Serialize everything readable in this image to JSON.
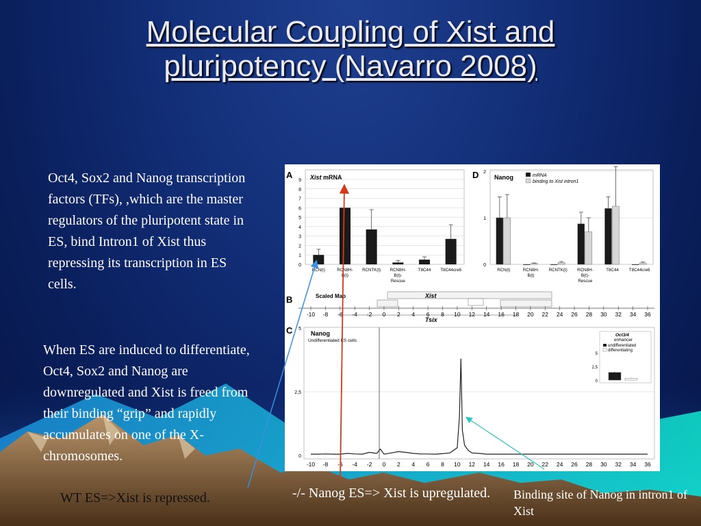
{
  "slide": {
    "title_line1": "Molecular Coupling of Xist and",
    "title_line2": "pluripotency (Navarro 2008)",
    "paragraph1": "Oct4, Sox2 and Nanog transcription factors (TFs), ,which are the master regulators of the pluripotent state in ES, bind Intron1 of Xist thus repressing its transcription in ES cells.",
    "paragraph2": "When ES are induced to differentiate, Oct4, Sox2 and Nanog are downregulated and Xist is freed from their binding “grip” and rapidly accumulates on one of the X-chromosomes.",
    "caption_wt": "WT ES=>Xist is repressed.",
    "caption_ko": "-/- Nanog ES=> Xist is upregulated.",
    "caption_binding": "Binding site of Nanog in intron1 of Xist"
  },
  "figure": {
    "panel_labels": [
      "A",
      "B",
      "C",
      "D"
    ],
    "panelA_title_italic": "Xist",
    "panelA_title_rest": " mRNA",
    "panelD_title": "Nanog",
    "panelD_legend": [
      "mRNA",
      "binding to Xist intron1"
    ],
    "panelB_title": "Scaled Map",
    "panelB_gene_xist": "Xist",
    "panelB_gene_tsix": "Tsix",
    "panelC_title": "Nanog",
    "panelC_subtitle": "Undifferentiated ES cells",
    "inset_title_1": "Oct3/4",
    "inset_title_2": "enhancer",
    "inset_legend": [
      "undifferentiated",
      "differentiating"
    ],
    "colors": {
      "black_bar": "#1a1a1a",
      "grey_bar": "#d6d6d6",
      "arrow_blue": "#3a8fe0",
      "arrow_red": "#d23a1a",
      "arrow_cyan": "#29c6c6"
    }
  },
  "chart_data": [
    {
      "type": "bar",
      "panel": "A",
      "title": "Xist mRNA",
      "categories": [
        "RCN(t)",
        "RCN8H-B(t)",
        "RCNTK(t)",
        "RCN8H-B(t)-Rescue",
        "T8C44",
        "T8C44cre6"
      ],
      "values": [
        1.0,
        6.0,
        3.7,
        0.2,
        0.5,
        2.7
      ],
      "errors": [
        0.6,
        0.0,
        2.1,
        0.2,
        0.3,
        1.5
      ],
      "yticks": [
        "0",
        "1",
        "2",
        "3",
        "4",
        "5",
        "6",
        "7",
        "8",
        "9"
      ],
      "ylim": [
        0,
        9
      ]
    },
    {
      "type": "bar",
      "panel": "D",
      "title": "Nanog",
      "categories": [
        "RCN(t)",
        "RCN8H-B(t)",
        "RCNTK(t)",
        "RCN8H-B(t)-Rescue",
        "T8C44",
        "T8C44cre6"
      ],
      "series": [
        {
          "name": "mRNA",
          "values": [
            1.0,
            0.0,
            0.0,
            0.87,
            1.2,
            0.0
          ],
          "errors": [
            0.45,
            0.0,
            0.0,
            0.25,
            0.25,
            0.0
          ]
        },
        {
          "name": "binding to Xist intron1",
          "values": [
            1.0,
            0.02,
            0.04,
            0.7,
            1.25,
            0.03
          ],
          "errors": [
            0.5,
            0.01,
            0.02,
            0.3,
            0.85,
            0.02
          ]
        }
      ],
      "yticks": [
        "0",
        "1",
        "2"
      ],
      "ylim": [
        0,
        2
      ]
    },
    {
      "type": "line",
      "panel": "C",
      "title": "Nanog",
      "subtitle": "Undifferentiated ES cells",
      "xticks": [
        "-10",
        "-8",
        "-6",
        "-4",
        "-2",
        "0",
        "2",
        "4",
        "6",
        "8",
        "10",
        "12",
        "14",
        "16",
        "18",
        "20",
        "22",
        "24",
        "26",
        "28",
        "30",
        "32",
        "34",
        "36"
      ],
      "yticks": [
        "0",
        "2,5",
        "5"
      ],
      "x": [
        -10,
        -9,
        -8,
        -7,
        -6,
        -5,
        -4,
        -3,
        -2,
        -1,
        -0.5,
        0,
        1,
        2,
        3,
        4,
        5,
        6,
        7,
        8,
        9,
        10,
        10.3,
        10.5,
        10.7,
        11,
        11.5,
        12,
        13,
        14,
        16,
        18,
        20,
        22,
        24,
        26,
        28,
        30,
        32,
        34,
        36
      ],
      "y": [
        0.05,
        0.05,
        0.06,
        0.05,
        0.05,
        0.08,
        0.06,
        0.05,
        0.12,
        0.08,
        0.25,
        0.05,
        0.1,
        0.15,
        0.12,
        0.08,
        0.06,
        0.06,
        0.05,
        0.07,
        0.1,
        0.3,
        1.5,
        3.8,
        1.0,
        0.4,
        0.2,
        0.1,
        0.08,
        0.05,
        0.05,
        0.05,
        0.05,
        0.05,
        0.05,
        0.05,
        0.05,
        0.05,
        0.05,
        0.05,
        0.05
      ],
      "xlim": [
        -10,
        36
      ],
      "ylim": [
        0,
        5
      ]
    },
    {
      "type": "bar",
      "panel": "C-inset",
      "title": "Oct3/4 enhancer",
      "categories": [
        "undifferentiated",
        "differentiating"
      ],
      "values": [
        1.4,
        0.35
      ],
      "errors": [
        0.15,
        0.1
      ],
      "yticks": [
        "0",
        "2,5",
        "5"
      ],
      "ylim": [
        0,
        5
      ]
    }
  ]
}
